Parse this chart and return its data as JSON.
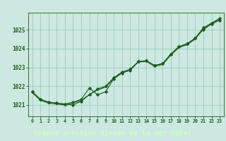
{
  "bg_color": "#cce8e0",
  "plot_bg_color": "#cce8e0",
  "bottom_bar_color": "#2d6b2d",
  "grid_color": "#99ccbb",
  "line_color": "#1a5c1a",
  "marker_color": "#1a5c1a",
  "xlabel": "Graphe pression niveau de la mer (hPa)",
  "xlabel_fontsize": 7.0,
  "xlabel_color": "#ccffcc",
  "tick_color": "#1a5c1a",
  "ylim": [
    1020.4,
    1025.9
  ],
  "xlim": [
    -0.5,
    23.5
  ],
  "yticks": [
    1021,
    1022,
    1023,
    1024,
    1025
  ],
  "xticks": [
    0,
    1,
    2,
    3,
    4,
    5,
    6,
    7,
    8,
    9,
    10,
    11,
    12,
    13,
    14,
    15,
    16,
    17,
    18,
    19,
    20,
    21,
    22,
    23
  ],
  "series1": [
    1021.7,
    1021.3,
    1021.15,
    1021.1,
    1021.05,
    1021.0,
    1021.2,
    1021.55,
    1021.85,
    1022.0,
    1022.45,
    1022.75,
    1022.9,
    1023.3,
    1023.35,
    1023.1,
    1023.2,
    1023.7,
    1024.1,
    1024.25,
    1024.55,
    1025.1,
    1025.35,
    1025.6
  ],
  "series2": [
    1021.7,
    1021.3,
    1021.15,
    1021.1,
    1021.05,
    1021.15,
    1021.3,
    1021.9,
    1021.55,
    1021.7,
    1022.4,
    1022.7,
    1022.85,
    1023.3,
    1023.35,
    1023.1,
    1023.2,
    1023.7,
    1024.1,
    1024.25,
    1024.55,
    1025.0,
    1025.3,
    1025.5
  ],
  "series3": [
    1021.65,
    1021.25,
    1021.1,
    1021.05,
    1021.0,
    1021.1,
    1021.25,
    1021.55,
    1021.8,
    1021.95,
    1022.4,
    1022.7,
    1022.85,
    1023.28,
    1023.32,
    1023.05,
    1023.15,
    1023.65,
    1024.05,
    1024.2,
    1024.5,
    1025.05,
    1025.3,
    1025.55
  ]
}
